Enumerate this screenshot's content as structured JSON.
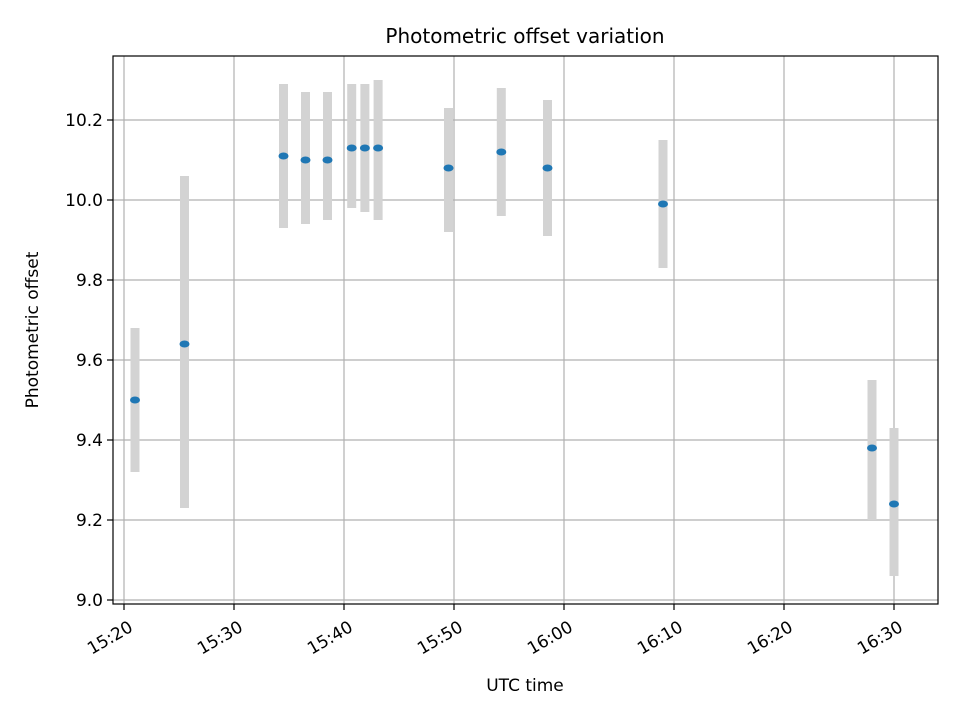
{
  "chart_data": {
    "type": "scatter",
    "title": "Photometric offset variation",
    "xlabel": "UTC time",
    "ylabel": "Photometric offset",
    "x_tick_labels": [
      "15:20",
      "15:30",
      "15:40",
      "15:50",
      "16:00",
      "16:10",
      "16:20",
      "16:30"
    ],
    "y_tick_labels": [
      "9.0",
      "9.2",
      "9.4",
      "9.6",
      "9.8",
      "10.0",
      "10.2"
    ],
    "x_ticks": [
      "15:20",
      "15:30",
      "15:40",
      "15:50",
      "16:00",
      "16:10",
      "16:20",
      "16:30"
    ],
    "y_ticks": [
      9.0,
      9.2,
      9.4,
      9.6,
      9.8,
      10.0,
      10.2
    ],
    "xlim": [
      "15:19",
      "16:34"
    ],
    "ylim": [
      8.99,
      10.36
    ],
    "grid": true,
    "marker_color": "#1f77b4",
    "errorbar_color": "#d3d3d3",
    "points": [
      {
        "time": "15:21",
        "y": 9.5,
        "yerr_low": 9.32,
        "yerr_high": 9.68
      },
      {
        "time": "15:25.5",
        "y": 9.64,
        "yerr_low": 9.23,
        "yerr_high": 10.06
      },
      {
        "time": "15:34.5",
        "y": 10.11,
        "yerr_low": 9.93,
        "yerr_high": 10.29
      },
      {
        "time": "15:36.5",
        "y": 10.1,
        "yerr_low": 9.94,
        "yerr_high": 10.27
      },
      {
        "time": "15:38.5",
        "y": 10.1,
        "yerr_low": 9.95,
        "yerr_high": 10.27
      },
      {
        "time": "15:40.7",
        "y": 10.13,
        "yerr_low": 9.98,
        "yerr_high": 10.29
      },
      {
        "time": "15:41.9",
        "y": 10.13,
        "yerr_low": 9.97,
        "yerr_high": 10.29
      },
      {
        "time": "15:43.1",
        "y": 10.13,
        "yerr_low": 9.95,
        "yerr_high": 10.3
      },
      {
        "time": "15:49.5",
        "y": 10.08,
        "yerr_low": 9.92,
        "yerr_high": 10.23
      },
      {
        "time": "15:54.3",
        "y": 10.12,
        "yerr_low": 9.96,
        "yerr_high": 10.28
      },
      {
        "time": "15:58.5",
        "y": 10.08,
        "yerr_low": 9.91,
        "yerr_high": 10.25
      },
      {
        "time": "16:09",
        "y": 9.99,
        "yerr_low": 9.83,
        "yerr_high": 10.15
      },
      {
        "time": "16:28",
        "y": 9.38,
        "yerr_low": 9.2,
        "yerr_high": 9.55
      },
      {
        "time": "16:30",
        "y": 9.24,
        "yerr_low": 9.06,
        "yerr_high": 9.43
      }
    ]
  }
}
